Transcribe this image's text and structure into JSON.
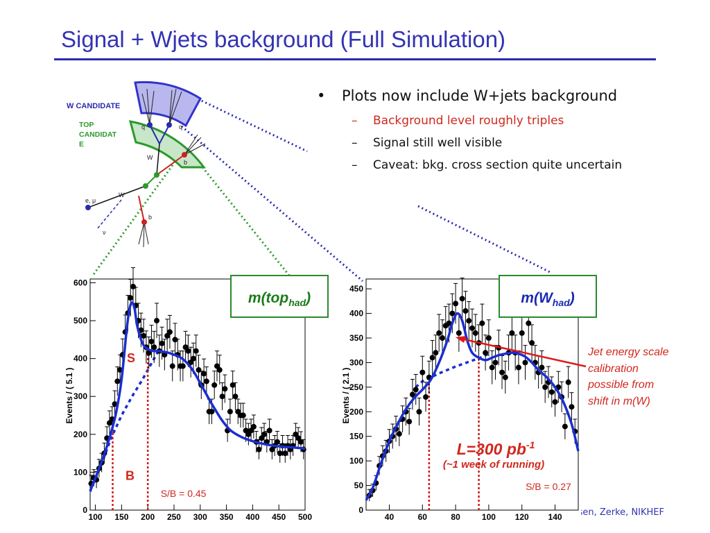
{
  "title": "Signal + Wjets background (Full Simulation)",
  "bullets": {
    "main": "Plots now include W+jets background",
    "subs": [
      {
        "text": "Background level roughly triples",
        "color": "#d0281e"
      },
      {
        "text": "Signal still well visible",
        "color": "#111111"
      },
      {
        "text": "Caveat: bkg. cross section quite uncertain",
        "color": "#111111"
      }
    ]
  },
  "diagram": {
    "w_candidate": "W CANDIDATE",
    "top_candidate_lines": [
      "TOP",
      "CANDIDAT",
      "E"
    ],
    "labels": {
      "q1": "q",
      "q2": "q",
      "w_had": "W",
      "b_had": "b",
      "lepton": "e, μ",
      "w_lep": "W",
      "neutrino": "ν",
      "b_lep": "b"
    }
  },
  "annotation": [
    "Jet energy scale",
    "calibration",
    "possible from",
    "shift in m(W)"
  ],
  "footer": "Bentvelsen, Zerke, NIKHEF",
  "colors": {
    "title": "#3333b3",
    "accent_red": "#d0281e",
    "fit_blue": "#1a2ed0",
    "box_green": "#2a8a2a",
    "w_fill": "#b8b8ee",
    "top_fill": "#c8e6c8"
  },
  "chart_data": [
    {
      "type": "scatter",
      "ylabel": "Events / ( 5.1 )",
      "xlim": [
        90,
        500
      ],
      "ylim": [
        0,
        610
      ],
      "x_ticks": [
        100,
        150,
        200,
        250,
        300,
        350,
        400,
        450,
        500
      ],
      "y_ticks": [
        0,
        100,
        200,
        300,
        400,
        500,
        600
      ],
      "y_tick_labels": [
        "0",
        "100",
        "200",
        "300",
        "400",
        "500",
        "600"
      ],
      "box_label": "m(top",
      "box_sub": "had",
      "signal_label": "S",
      "background_label": "B",
      "sb_text": "S/B = 0.45",
      "cut_lines": [
        133,
        200
      ],
      "x": [
        92,
        97,
        102,
        107,
        112,
        117,
        122,
        127,
        132,
        137,
        142,
        147,
        152,
        157,
        162,
        167,
        172,
        177,
        182,
        187,
        192,
        197,
        202,
        207,
        212,
        217,
        222,
        227,
        232,
        237,
        242,
        247,
        252,
        257,
        262,
        267,
        272,
        277,
        282,
        287,
        292,
        297,
        302,
        307,
        312,
        317,
        322,
        327,
        332,
        337,
        342,
        347,
        352,
        357,
        362,
        367,
        372,
        377,
        382,
        387,
        392,
        397,
        402,
        407,
        412,
        417,
        422,
        427,
        432,
        437,
        442,
        447,
        452,
        457,
        462,
        467,
        472,
        477,
        482,
        487,
        492,
        497
      ],
      "y": [
        70,
        85,
        80,
        110,
        125,
        150,
        190,
        230,
        240,
        280,
        340,
        370,
        410,
        470,
        520,
        560,
        590,
        540,
        500,
        475,
        460,
        430,
        415,
        445,
        430,
        500,
        420,
        440,
        410,
        460,
        470,
        380,
        450,
        410,
        380,
        380,
        430,
        420,
        390,
        400,
        420,
        370,
        330,
        360,
        340,
        260,
        260,
        330,
        380,
        370,
        300,
        320,
        210,
        260,
        330,
        300,
        260,
        250,
        250,
        210,
        200,
        210,
        220,
        180,
        160,
        190,
        200,
        180,
        210,
        160,
        170,
        180,
        150,
        170,
        150,
        170,
        160,
        170,
        200,
        190,
        180,
        160
      ],
      "err": [
        22,
        22,
        22,
        24,
        25,
        27,
        30,
        32,
        33,
        35,
        38,
        40,
        42,
        45,
        47,
        49,
        50,
        48,
        46,
        45,
        44,
        43,
        42,
        43,
        42,
        46,
        42,
        43,
        41,
        44,
        44,
        40,
        43,
        41,
        40,
        40,
        42,
        42,
        40,
        41,
        42,
        39,
        37,
        39,
        38,
        33,
        33,
        37,
        40,
        39,
        36,
        37,
        30,
        33,
        37,
        36,
        33,
        32,
        32,
        30,
        29,
        30,
        31,
        28,
        26,
        28,
        29,
        28,
        30,
        26,
        27,
        28,
        25,
        27,
        25,
        27,
        26,
        27,
        29,
        28,
        27,
        26
      ],
      "fit_x": [
        90,
        100,
        110,
        120,
        130,
        140,
        150,
        160,
        165,
        170,
        175,
        180,
        190,
        200,
        210,
        220,
        230,
        240,
        250,
        260,
        270,
        280,
        290,
        300,
        310,
        320,
        330,
        340,
        350,
        360,
        380,
        400,
        420,
        440,
        460,
        480,
        500
      ],
      "fit_y": [
        50,
        85,
        120,
        160,
        205,
        260,
        345,
        480,
        530,
        548,
        530,
        485,
        440,
        425,
        420,
        420,
        418,
        415,
        410,
        405,
        395,
        380,
        360,
        335,
        310,
        285,
        262,
        240,
        222,
        208,
        192,
        182,
        175,
        170,
        167,
        165,
        162
      ],
      "bkg_x": [
        90,
        110,
        130,
        150,
        170,
        190,
        200,
        210,
        220
      ],
      "bkg_y": [
        50,
        115,
        190,
        250,
        300,
        345,
        370,
        395,
        420
      ]
    },
    {
      "type": "scatter",
      "ylabel": "Events / ( 2.1 )",
      "xlim": [
        26,
        154
      ],
      "ylim": [
        0,
        470
      ],
      "x_ticks": [
        40,
        60,
        80,
        100,
        120,
        140
      ],
      "y_ticks": [
        0,
        50,
        100,
        150,
        200,
        250,
        300,
        350,
        400,
        450
      ],
      "y_tick_labels": [
        "0",
        "50",
        "100",
        "150",
        "200",
        "250",
        "300",
        "350",
        "400",
        "450"
      ],
      "box_label": "m(W",
      "box_sub": "had",
      "lumi_text": "L=300 pb",
      "lumi_sup": "-1",
      "lumi_note": "(~1 week of running)",
      "sb_text": "S/B = 0.27",
      "cut_lines": [
        64,
        94
      ],
      "x": [
        28,
        30,
        32,
        34,
        36,
        38,
        40,
        42,
        44,
        46,
        48,
        50,
        52,
        54,
        56,
        58,
        60,
        62,
        64,
        66,
        68,
        70,
        72,
        74,
        76,
        78,
        80,
        82,
        84,
        86,
        88,
        90,
        92,
        94,
        96,
        98,
        100,
        102,
        104,
        106,
        108,
        110,
        112,
        114,
        116,
        118,
        120,
        122,
        124,
        126,
        128,
        130,
        132,
        134,
        136,
        138,
        140,
        142,
        144,
        146,
        148,
        150,
        152
      ],
      "y": [
        30,
        40,
        55,
        90,
        110,
        120,
        140,
        150,
        165,
        155,
        185,
        200,
        180,
        235,
        245,
        200,
        280,
        230,
        270,
        310,
        320,
        360,
        350,
        375,
        380,
        400,
        420,
        360,
        430,
        405,
        385,
        370,
        360,
        340,
        380,
        320,
        350,
        290,
        300,
        330,
        280,
        270,
        320,
        360,
        320,
        290,
        360,
        300,
        380,
        340,
        300,
        280,
        290,
        250,
        260,
        240,
        220,
        250,
        230,
        170,
        260,
        210,
        160
      ],
      "err": [
        12,
        13,
        15,
        19,
        21,
        22,
        24,
        25,
        26,
        25,
        27,
        28,
        27,
        31,
        31,
        28,
        33,
        30,
        33,
        35,
        36,
        38,
        37,
        39,
        39,
        40,
        41,
        38,
        42,
        40,
        39,
        39,
        38,
        37,
        39,
        36,
        37,
        34,
        35,
        36,
        34,
        33,
        36,
        38,
        36,
        34,
        38,
        35,
        39,
        37,
        35,
        33,
        34,
        32,
        32,
        31,
        30,
        32,
        31,
        26,
        32,
        29,
        25
      ],
      "fit_x": [
        26,
        30,
        35,
        40,
        45,
        50,
        55,
        60,
        65,
        70,
        75,
        78,
        81,
        84,
        87,
        90,
        94,
        98,
        102,
        106,
        110,
        114,
        118,
        122,
        126,
        130,
        135,
        140,
        145,
        150,
        154
      ],
      "fit_y": [
        20,
        45,
        95,
        140,
        175,
        205,
        228,
        245,
        265,
        300,
        345,
        380,
        400,
        385,
        345,
        320,
        310,
        305,
        310,
        315,
        318,
        320,
        318,
        312,
        300,
        285,
        270,
        250,
        220,
        175,
        120
      ],
      "bkg_x": [
        56,
        60,
        65,
        70,
        75,
        80,
        85,
        90,
        95,
        100
      ],
      "bkg_y": [
        250,
        262,
        270,
        278,
        285,
        292,
        298,
        304,
        310,
        318
      ]
    }
  ]
}
